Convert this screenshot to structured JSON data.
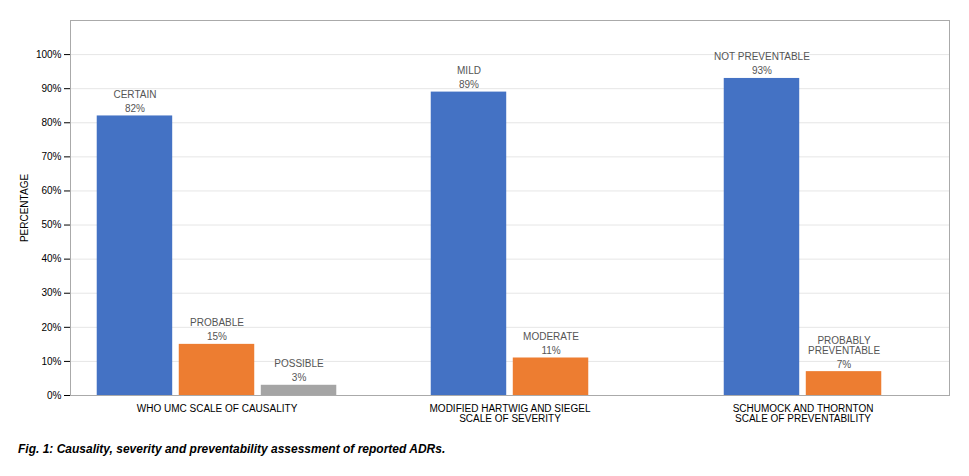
{
  "chart_data": {
    "type": "bar",
    "categories": [
      "WHO UMC SCALE OF CAUSALITY",
      "MODIFIED HARTWIG AND SIEGEL\nSCALE OF SEVERITY",
      "SCHUMOCK AND THORNTON\nSCALE OF PREVENTABILITY"
    ],
    "series": [
      {
        "color": "#4472C4",
        "values": [
          82,
          89,
          93
        ],
        "value_labels": [
          "82%",
          "89%",
          "93%"
        ],
        "annotations": [
          "CERTAIN",
          "MILD",
          "NOT PREVENTABLE"
        ]
      },
      {
        "color": "#ED7D31",
        "values": [
          15,
          11,
          7
        ],
        "value_labels": [
          "15%",
          "11%",
          "7%"
        ],
        "annotations": [
          "PROBABLE",
          "MODERATE",
          "PROBABLY\nPREVENTABLE"
        ]
      },
      {
        "color": "#A5A5A5",
        "values": [
          3,
          null,
          null
        ],
        "value_labels": [
          "3%",
          null,
          null
        ],
        "annotations": [
          "POSSIBLE",
          null,
          null
        ]
      }
    ],
    "ylabel": "PERCENTAGE",
    "ylim": [
      0,
      110
    ],
    "yticks": [
      {
        "value": 0,
        "label": "0%"
      },
      {
        "value": 10,
        "label": "10%"
      },
      {
        "value": 20,
        "label": "20%"
      },
      {
        "value": 30,
        "label": "30%"
      },
      {
        "value": 40,
        "label": "40%"
      },
      {
        "value": 50,
        "label": "50%"
      },
      {
        "value": 60,
        "label": "60%"
      },
      {
        "value": 70,
        "label": "70%"
      },
      {
        "value": 80,
        "label": "80%"
      },
      {
        "value": 90,
        "label": "90%"
      },
      {
        "value": 100,
        "label": "100%"
      }
    ],
    "grid": true,
    "data_labels": true,
    "caption": "Fig. 1: Causality, severity and preventability assessment of reported ADRs."
  }
}
